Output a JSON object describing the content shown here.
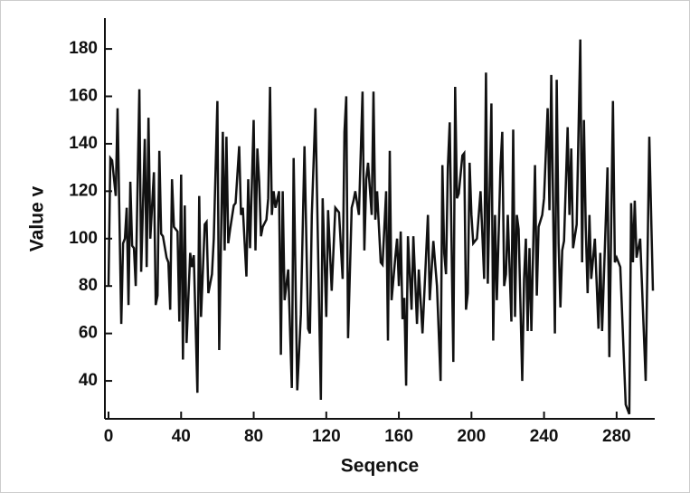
{
  "chart_data": {
    "type": "line",
    "x_label": "Seqence",
    "y_label": "Value v",
    "color": "#111111",
    "xlim": [
      -2,
      301
    ],
    "ylim": [
      24,
      193
    ],
    "xticks": [
      0,
      40,
      80,
      120,
      160,
      200,
      240,
      280
    ],
    "yticks": [
      40,
      60,
      80,
      100,
      120,
      140,
      160,
      180
    ],
    "x": [
      0,
      1,
      2,
      4,
      5,
      7,
      8,
      9,
      10,
      11,
      12,
      13,
      14,
      15,
      17,
      18,
      20,
      21,
      22,
      23,
      25,
      26,
      27,
      28,
      29,
      30,
      32,
      33,
      34,
      35,
      36,
      38,
      39,
      40,
      41,
      42,
      43,
      45,
      46,
      47,
      49,
      50,
      51,
      53,
      54,
      55,
      57,
      58,
      60,
      61,
      63,
      64,
      65,
      66,
      67,
      69,
      70,
      72,
      73,
      74,
      76,
      77,
      78,
      80,
      81,
      82,
      83,
      84,
      85,
      87,
      88,
      89,
      90,
      91,
      92,
      94,
      95,
      96,
      97,
      99,
      101,
      102,
      104,
      106,
      108,
      110,
      111,
      112,
      114,
      117,
      118,
      120,
      121,
      123,
      125,
      127,
      129,
      130,
      131,
      132,
      134,
      135,
      136,
      138,
      140,
      141,
      142,
      143,
      145,
      146,
      147,
      148,
      150,
      151,
      153,
      154,
      155,
      156,
      158,
      159,
      160,
      161,
      162,
      163,
      164,
      165,
      167,
      168,
      170,
      171,
      173,
      176,
      177,
      179,
      181,
      183,
      184,
      185,
      186,
      187,
      188,
      190,
      191,
      192,
      193,
      195,
      196,
      197,
      198,
      199,
      200,
      201,
      203,
      205,
      207,
      208,
      209,
      211,
      212,
      213,
      214,
      216,
      217,
      218,
      219,
      220,
      222,
      223,
      224,
      225,
      226,
      228,
      229,
      230,
      231,
      232,
      233,
      235,
      236,
      237,
      239,
      240,
      242,
      243,
      244,
      246,
      247,
      248,
      249,
      250,
      251,
      253,
      254,
      255,
      256,
      258,
      260,
      261,
      262,
      263,
      264,
      265,
      266,
      268,
      270,
      271,
      272,
      275,
      276,
      278,
      279,
      280,
      282,
      285,
      287,
      288,
      289,
      290,
      291,
      293,
      296,
      298,
      300
    ],
    "values": [
      80,
      134,
      133,
      118,
      155,
      64,
      98,
      100,
      113,
      72,
      124,
      97,
      96,
      80,
      163,
      86,
      142,
      88,
      151,
      100,
      128,
      72,
      76,
      137,
      102,
      101,
      92,
      90,
      70,
      125,
      105,
      103,
      65,
      127,
      49,
      114,
      56,
      94,
      88,
      93,
      35,
      118,
      67,
      106,
      107,
      77,
      85,
      100,
      158,
      53,
      145,
      95,
      143,
      98,
      104,
      114,
      115,
      139,
      110,
      113,
      84,
      125,
      96,
      150,
      95,
      138,
      124,
      101,
      105,
      108,
      117,
      164,
      110,
      120,
      113,
      120,
      51,
      120,
      74,
      87,
      37,
      134,
      36,
      68,
      139,
      62,
      60,
      110,
      155,
      32,
      117,
      67,
      112,
      78,
      113,
      111,
      83,
      145,
      160,
      58,
      113,
      116,
      120,
      110,
      162,
      95,
      125,
      132,
      110,
      162,
      108,
      120,
      90,
      89,
      120,
      57,
      137,
      74,
      92,
      100,
      80,
      103,
      66,
      75,
      38,
      101,
      70,
      101,
      64,
      87,
      60,
      110,
      74,
      99,
      80,
      40,
      131,
      94,
      85,
      130,
      149,
      48,
      164,
      117,
      119,
      135,
      136,
      70,
      77,
      132,
      110,
      98,
      100,
      120,
      83,
      170,
      81,
      157,
      57,
      110,
      74,
      130,
      145,
      80,
      85,
      110,
      65,
      146,
      67,
      110,
      104,
      40,
      83,
      100,
      61,
      96,
      61,
      131,
      76,
      105,
      110,
      117,
      155,
      112,
      169,
      60,
      167,
      98,
      71,
      95,
      99,
      147,
      110,
      138,
      96,
      106,
      184,
      90,
      150,
      105,
      77,
      110,
      83,
      100,
      62,
      94,
      61,
      130,
      50,
      158,
      90,
      92,
      88,
      30,
      26,
      115,
      90,
      116,
      92,
      100,
      40,
      143,
      78
    ]
  }
}
